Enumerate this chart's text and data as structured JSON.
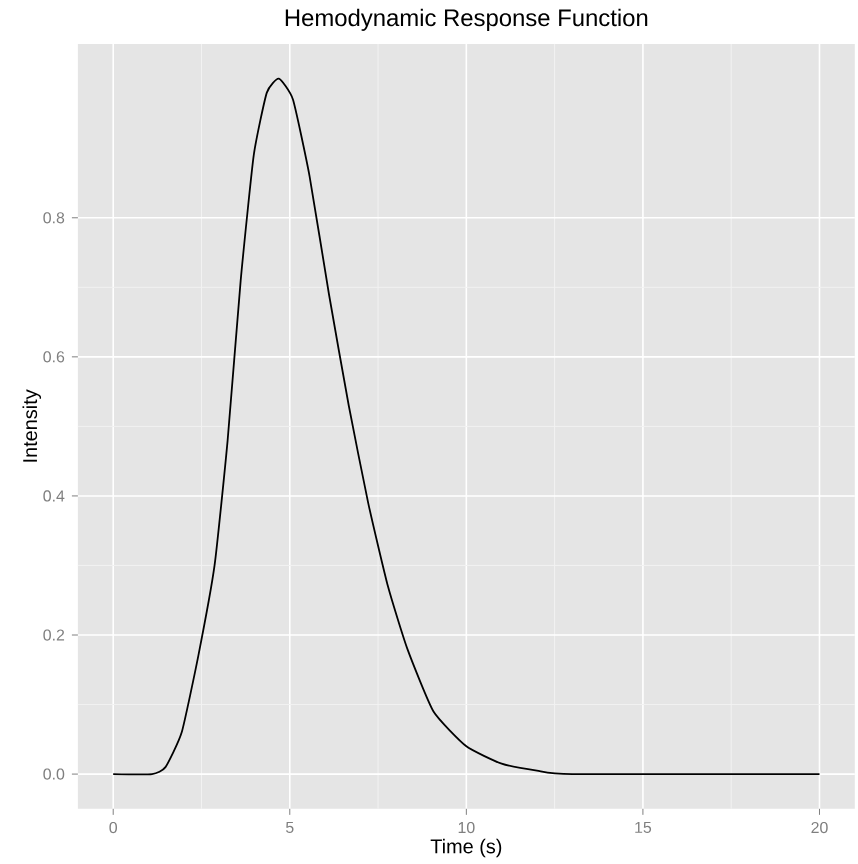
{
  "chart_data": {
    "type": "line",
    "title": "Hemodynamic Response Function",
    "xlabel": "Time (s)",
    "ylabel": "Intensity",
    "x": [
      0,
      1.1,
      1.48,
      1.94,
      2.41,
      2.87,
      3.24,
      3.61,
      3.98,
      4.35,
      4.69,
      5.09,
      5.56,
      6.11,
      6.67,
      7.22,
      7.78,
      8.33,
      9.07,
      10,
      11,
      12,
      13,
      20
    ],
    "series": [
      {
        "color": "#000000",
        "values": [
          0,
          0,
          0.01,
          0.06,
          0.17,
          0.3,
          0.48,
          0.71,
          0.89,
          0.98,
          1.0,
          0.97,
          0.86,
          0.69,
          0.53,
          0.39,
          0.27,
          0.18,
          0.09,
          0.04,
          0.015,
          0.005,
          0,
          0
        ]
      }
    ],
    "xlim": [
      -1,
      21
    ],
    "ylim": [
      -0.05,
      1.05
    ],
    "xticks": [
      0,
      5,
      10,
      15,
      20
    ],
    "yticks": [
      {
        "value": 0,
        "label": "0.0"
      },
      {
        "value": 0.2,
        "label": "0.2"
      },
      {
        "value": 0.4,
        "label": "0.4"
      },
      {
        "value": 0.6,
        "label": "0.6"
      },
      {
        "value": 0.8,
        "label": "0.8"
      }
    ],
    "grid": true,
    "marker": "none",
    "line_style": "solid"
  }
}
